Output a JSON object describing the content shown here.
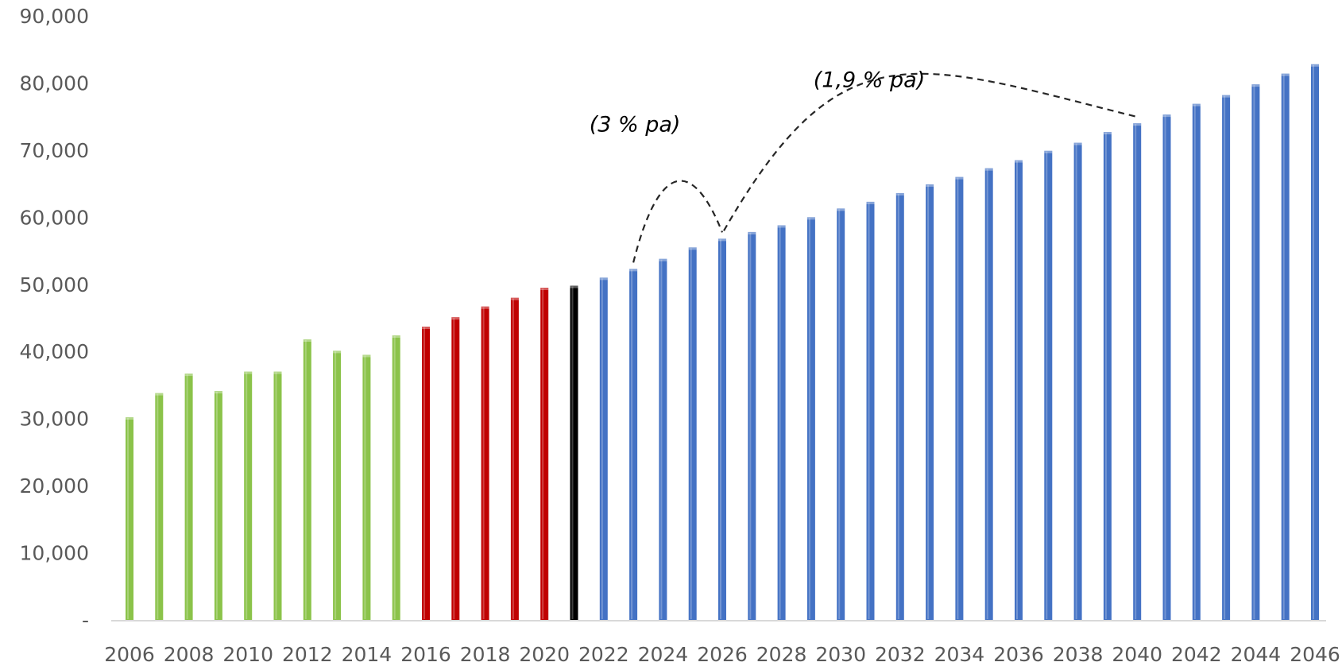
{
  "chart_data": {
    "type": "bar",
    "title": "",
    "xlabel": "",
    "ylabel": "",
    "ylim": [
      0,
      90000
    ],
    "yticks": [
      0,
      10000,
      20000,
      30000,
      40000,
      50000,
      60000,
      70000,
      80000,
      90000
    ],
    "ytick_labels": [
      "-",
      "10,000",
      "20,000",
      "30,000",
      "40,000",
      "50,000",
      "60,000",
      "70,000",
      "80,000",
      "90,000"
    ],
    "grid": false,
    "legend": "none",
    "categories": [
      "2006",
      "2007",
      "2008",
      "2009",
      "2010",
      "2011",
      "2012",
      "2013",
      "2014",
      "2015",
      "2016",
      "2017",
      "2018",
      "2019",
      "2020",
      "2021",
      "2022",
      "2023",
      "2024",
      "2025",
      "2026",
      "2027",
      "2028",
      "2029",
      "2030",
      "2031",
      "2032",
      "2033",
      "2034",
      "2035",
      "2036",
      "2037",
      "2038",
      "2039",
      "2040",
      "2041",
      "2042",
      "2043",
      "2044",
      "2045",
      "2046"
    ],
    "xtick_labels": [
      "2006",
      "",
      "2008",
      "",
      "2010",
      "",
      "2012",
      "",
      "2014",
      "",
      "2016",
      "",
      "2018",
      "",
      "2020",
      "",
      "2022",
      "",
      "2024",
      "",
      "2026",
      "",
      "2028",
      "",
      "2030",
      "",
      "2032",
      "",
      "2034",
      "",
      "2036",
      "",
      "2038",
      "",
      "2040",
      "",
      "2042",
      "",
      "2044",
      "",
      "2046"
    ],
    "values": [
      30200,
      33800,
      36700,
      34100,
      37000,
      37000,
      41800,
      40100,
      39500,
      42400,
      43700,
      45100,
      46700,
      48000,
      49500,
      49800,
      51000,
      52300,
      53800,
      55500,
      56800,
      57800,
      58800,
      60000,
      61300,
      62300,
      63600,
      64900,
      66000,
      67300,
      68500,
      69900,
      71100,
      72700,
      74000,
      75300,
      76900,
      78200,
      79800,
      81400,
      82800
    ],
    "bar_colors": [
      "#8bc34a",
      "#8bc34a",
      "#8bc34a",
      "#8bc34a",
      "#8bc34a",
      "#8bc34a",
      "#8bc34a",
      "#8bc34a",
      "#8bc34a",
      "#8bc34a",
      "#c00000",
      "#c00000",
      "#c00000",
      "#c00000",
      "#c00000",
      "#000000",
      "#4472c4",
      "#4472c4",
      "#4472c4",
      "#4472c4",
      "#4472c4",
      "#4472c4",
      "#4472c4",
      "#4472c4",
      "#4472c4",
      "#4472c4",
      "#4472c4",
      "#4472c4",
      "#4472c4",
      "#4472c4",
      "#4472c4",
      "#4472c4",
      "#4472c4",
      "#4472c4",
      "#4472c4",
      "#4472c4",
      "#4472c4",
      "#4472c4",
      "#4472c4",
      "#4472c4",
      "#4472c4"
    ],
    "annotations": [
      {
        "text": "(3 % pa)",
        "from_category": "2023",
        "to_category": "2026",
        "style": "dashed-arc"
      },
      {
        "text": "(1,9 % pa)",
        "from_category": "2026",
        "to_category": "2040",
        "style": "dashed-arc"
      }
    ]
  }
}
